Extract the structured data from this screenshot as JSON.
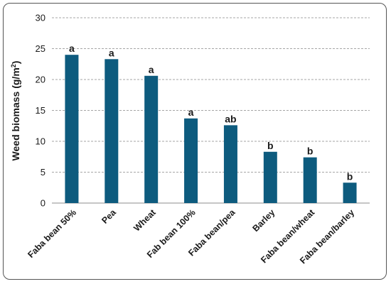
{
  "chart_data": {
    "type": "bar",
    "categories": [
      "Faba bean 50%",
      "Pea",
      "Wheat",
      "Fab bean 100%",
      "Faba bean/pea",
      "Barley",
      "Faba bean/wheat",
      "Faba bean/barley"
    ],
    "values": [
      24.0,
      23.3,
      20.6,
      13.7,
      12.6,
      8.3,
      7.4,
      3.3
    ],
    "significance_letters": [
      "a",
      "a",
      "a",
      "a",
      "ab",
      "b",
      "b",
      "b"
    ],
    "ylabel_main": "Weed biomass (g/m",
    "ylabel_sup": "2",
    "ylabel_close": ")",
    "ylim": [
      0,
      30
    ],
    "yticks": [
      0,
      5,
      10,
      15,
      20,
      25,
      30
    ],
    "grid": true,
    "colors": {
      "bar": "#0d5b7e",
      "grid": "#a6a6a6",
      "axis": "#8c8c8c"
    }
  }
}
